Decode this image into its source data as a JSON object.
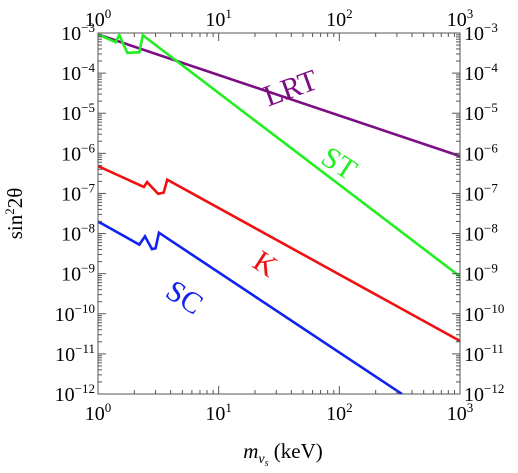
{
  "chart_data": {
    "type": "line",
    "title": "",
    "xlabel": {
      "base": "m",
      "sub_base": "ν",
      "sub_sub": "s",
      "unit": " (keV)"
    },
    "ylabel": {
      "pre": "sin",
      "sup": "2",
      "post": "2θ"
    },
    "x_scale": "log",
    "y_scale": "log",
    "xlim": [
      1,
      1000
    ],
    "ylim": [
      1e-12,
      0.001
    ],
    "grid": false,
    "x_ticks": [
      {
        "value": 1,
        "base": "10",
        "exp": "0"
      },
      {
        "value": 10,
        "base": "10",
        "exp": "1"
      },
      {
        "value": 100,
        "base": "10",
        "exp": "2"
      },
      {
        "value": 1000,
        "base": "10",
        "exp": "3"
      }
    ],
    "y_ticks": [
      {
        "value": 0.001,
        "base": "10",
        "exp": "−3"
      },
      {
        "value": 0.0001,
        "base": "10",
        "exp": "−4"
      },
      {
        "value": 1e-05,
        "base": "10",
        "exp": "−5"
      },
      {
        "value": 1e-06,
        "base": "10",
        "exp": "−6"
      },
      {
        "value": 1e-07,
        "base": "10",
        "exp": "−7"
      },
      {
        "value": 1e-08,
        "base": "10",
        "exp": "−8"
      },
      {
        "value": 1e-09,
        "base": "10",
        "exp": "−9"
      },
      {
        "value": 1e-10,
        "base": "10",
        "exp": "−10"
      },
      {
        "value": 1e-11,
        "base": "10",
        "exp": "−11"
      },
      {
        "value": 1e-12,
        "base": "10",
        "exp": "−12"
      }
    ],
    "series": [
      {
        "name": "LRT",
        "color": "#7b0e82",
        "x": [
          1,
          1000
        ],
        "y": [
          0.00092,
          8.5e-07
        ]
      },
      {
        "name": "ST",
        "color": "#22ee22",
        "x": [
          1,
          1.4,
          1.5,
          1.75,
          2.2,
          2.35,
          1000
        ],
        "y": [
          0.00092,
          0.00059,
          0.00089,
          0.00032,
          0.00033,
          0.00088,
          8.5e-10
        ]
      },
      {
        "name": "K",
        "color": "#ee1111",
        "x": [
          1,
          2.4,
          2.55,
          3.15,
          3.5,
          3.75,
          1000
        ],
        "y": [
          4.8e-07,
          1.45e-07,
          1.92e-07,
          9.8e-08,
          1.05e-07,
          2.2e-07,
          2.1e-11
        ]
      },
      {
        "name": "SC",
        "color": "#1122ee",
        "x": [
          1,
          2.2,
          2.45,
          2.8,
          3.0,
          3.2,
          330
        ],
        "y": [
          2e-08,
          5.3e-09,
          8.5e-09,
          4.1e-09,
          4.3e-09,
          1.05e-08,
          1e-12
        ]
      }
    ],
    "annotations": [
      {
        "text": "LRT",
        "color": "#7b0e82",
        "x": 42,
        "y": 2.5e-05,
        "rotate": -20
      },
      {
        "text": "ST",
        "color": "#22ee22",
        "x": 90,
        "y": 3.5e-07,
        "rotate": 33
      },
      {
        "text": "K",
        "color": "#ee1111",
        "x": 22,
        "y": 1.1e-09,
        "rotate": 33
      },
      {
        "text": "SC",
        "color": "#1122ee",
        "x": 4.7,
        "y": 1.6e-10,
        "rotate": 33
      }
    ]
  }
}
